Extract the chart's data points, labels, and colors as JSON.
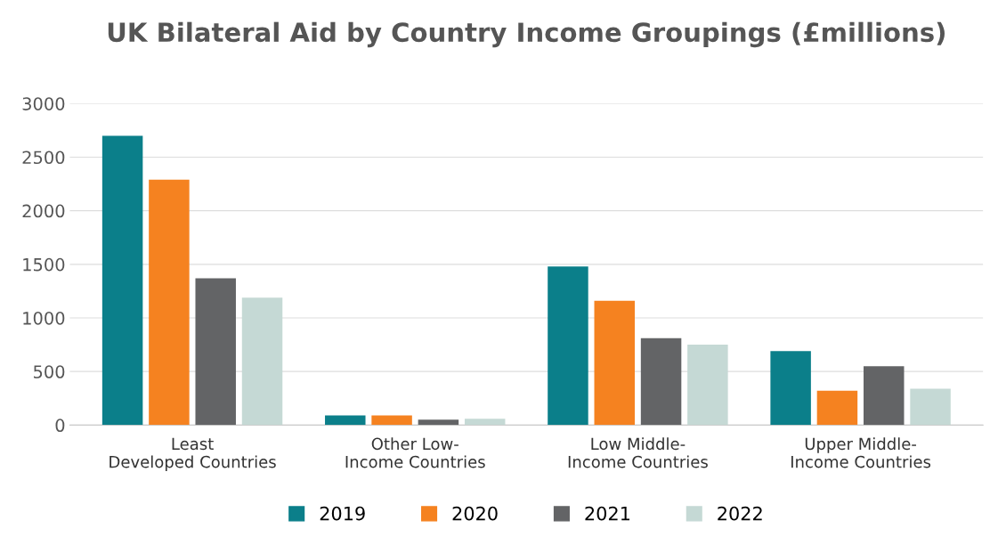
{
  "chart_data": {
    "type": "bar",
    "title": "UK Bilateral Aid by Country Income Groupings (£millions)",
    "categories": [
      "Least\nDeveloped Countries",
      "Other Low-\nIncome Countries",
      "Low Middle-\nIncome Countries",
      "Upper Middle-\nIncome Countries"
    ],
    "series": [
      {
        "name": "2019",
        "color": "#0b7f8a",
        "values": [
          2700,
          90,
          1480,
          690
        ]
      },
      {
        "name": "2020",
        "color": "#f58220",
        "values": [
          2290,
          90,
          1160,
          320
        ]
      },
      {
        "name": "2021",
        "color": "#636466",
        "values": [
          1370,
          50,
          810,
          550
        ]
      },
      {
        "name": "2022",
        "color": "#c5d9d5",
        "values": [
          1190,
          60,
          750,
          340
        ]
      }
    ],
    "ylim": [
      0,
      3000
    ],
    "yticks": [
      0,
      500,
      1000,
      1500,
      2000,
      2500,
      3000
    ],
    "grid": "y",
    "legend": "bottom"
  }
}
